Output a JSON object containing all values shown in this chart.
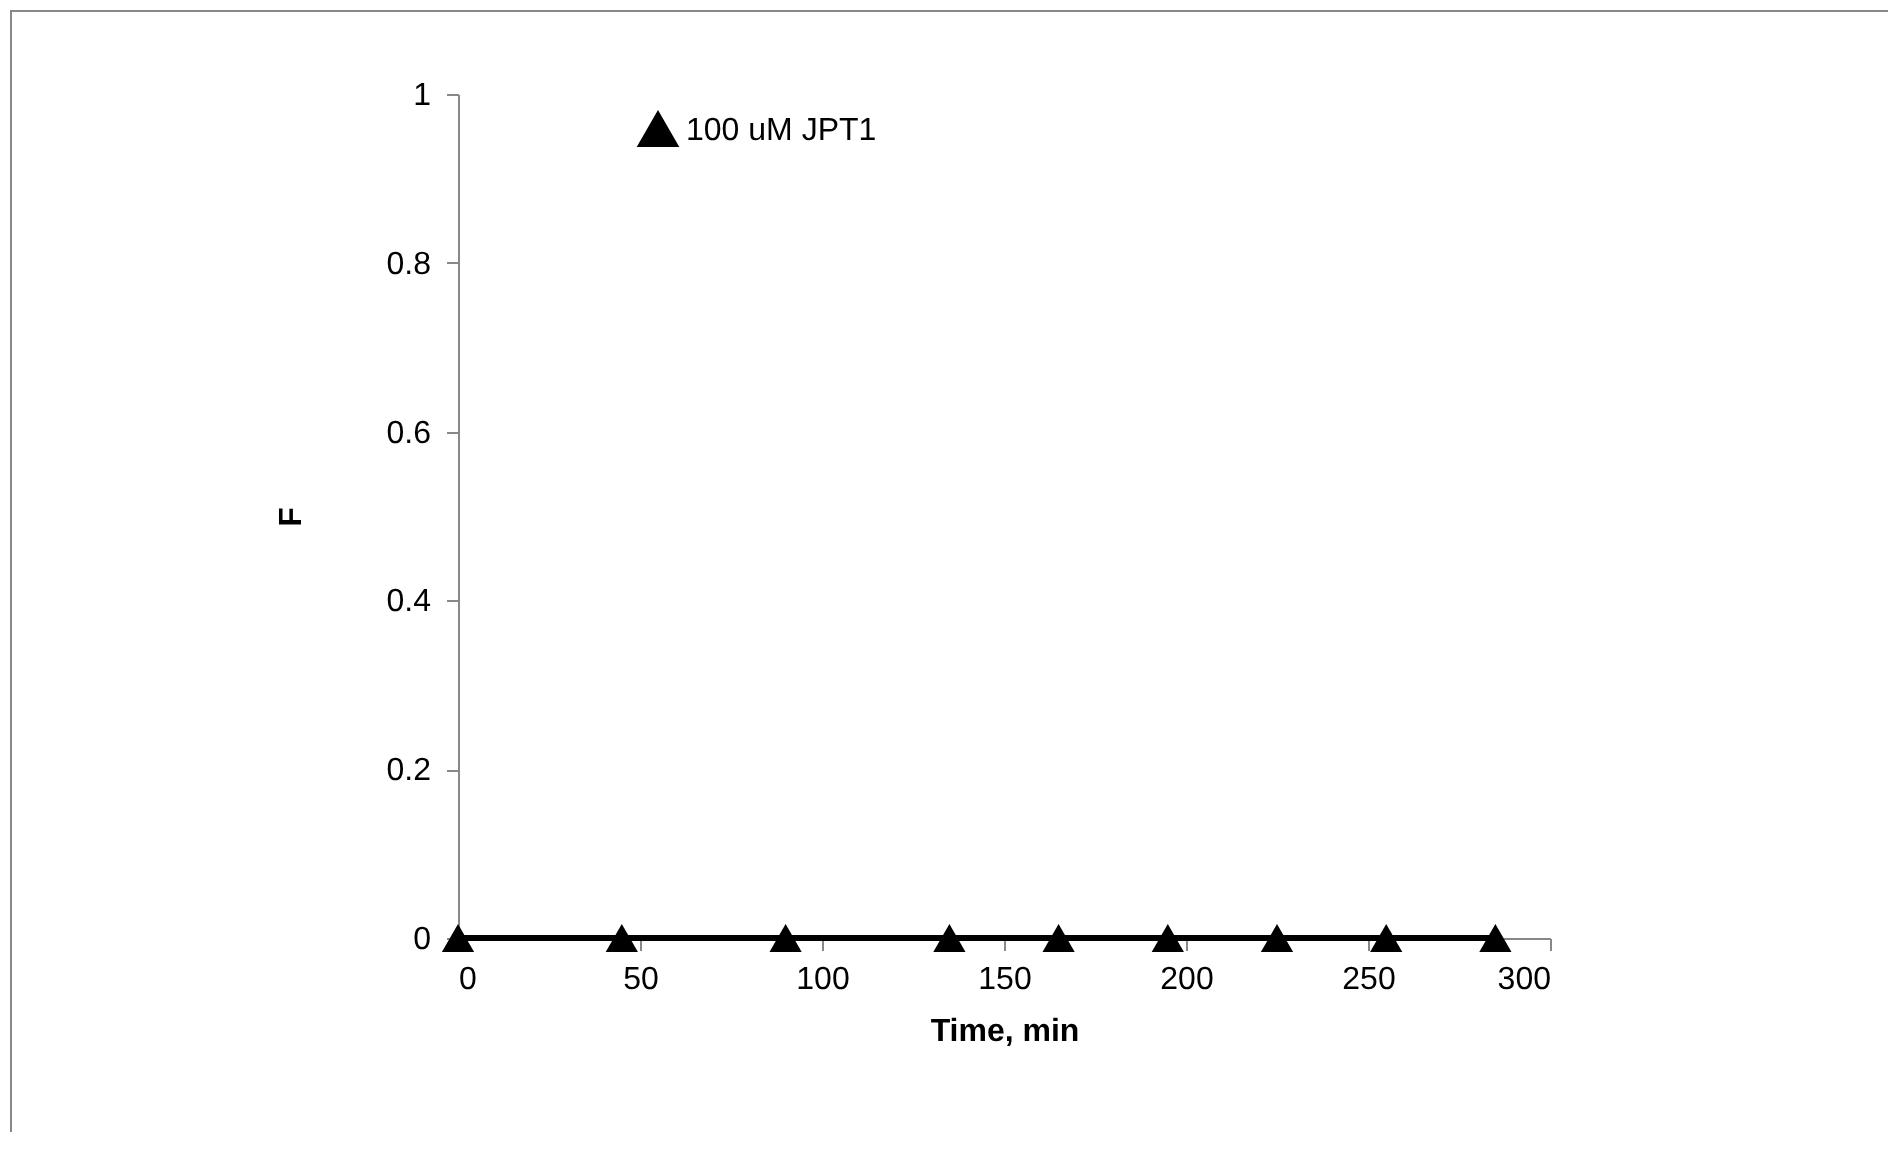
{
  "chart_data": {
    "type": "line",
    "xlabel": "Time, min",
    "ylabel": "F",
    "x": [
      0,
      45,
      90,
      135,
      165,
      195,
      225,
      255,
      285
    ],
    "series": [
      {
        "name": "100 uM JPT1",
        "color": "#000000",
        "values": [
          0,
          0,
          0,
          0,
          0,
          0,
          0,
          0,
          0
        ]
      }
    ],
    "xlim": [
      0,
      300
    ],
    "xticks": [
      0,
      50,
      100,
      150,
      200,
      250,
      300
    ],
    "ylim": [
      0,
      1
    ],
    "yticks": [
      0,
      0.2,
      0.4,
      0.6,
      0.8,
      1
    ],
    "grid": false,
    "legend": "top left",
    "marker": "triangle",
    "line_style": "solid"
  }
}
